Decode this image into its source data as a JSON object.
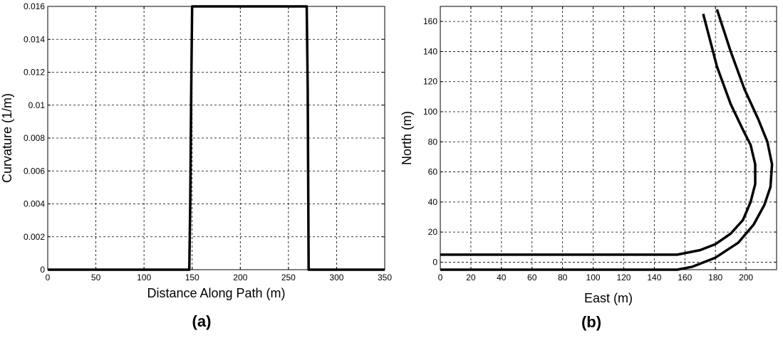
{
  "chart_data": [
    {
      "type": "line",
      "panel_label": "(a)",
      "xlabel": "Distance Along Path (m)",
      "ylabel": "Curvature (1/m)",
      "xlim": [
        0,
        350
      ],
      "ylim": [
        0,
        0.016
      ],
      "xticks": [
        "0",
        "50",
        "100",
        "150",
        "200",
        "250",
        "300",
        "350"
      ],
      "yticks": [
        "0",
        "0.002",
        "0.004",
        "0.006",
        "0.008",
        "0.01",
        "0.012",
        "0.014",
        "0.016"
      ],
      "xtick_values": [
        0,
        50,
        100,
        150,
        200,
        250,
        300,
        350
      ],
      "ytick_values": [
        0,
        0.002,
        0.004,
        0.006,
        0.008,
        0.01,
        0.012,
        0.014,
        0.016
      ],
      "grid": true,
      "series": [
        {
          "x": [
            0,
            147,
            148,
            149,
            150,
            269,
            270,
            271,
            350
          ],
          "y": [
            0,
            0,
            0.004,
            0.011,
            0.016,
            0.016,
            0.011,
            0,
            0
          ]
        }
      ]
    },
    {
      "type": "line",
      "panel_label": "(b)",
      "xlabel": "East (m)",
      "ylabel": "North (m)",
      "xlim": [
        0,
        220
      ],
      "ylim": [
        -5,
        170
      ],
      "xticks": [
        "0",
        "20",
        "40",
        "60",
        "80",
        "100",
        "120",
        "140",
        "160",
        "180",
        "200"
      ],
      "yticks": [
        "0",
        "20",
        "40",
        "60",
        "80",
        "100",
        "120",
        "140",
        "160"
      ],
      "xtick_values": [
        0,
        20,
        40,
        60,
        80,
        100,
        120,
        140,
        160,
        180,
        200
      ],
      "ytick_values": [
        0,
        20,
        40,
        60,
        80,
        100,
        120,
        140,
        160
      ],
      "grid": true,
      "series": [
        {
          "x": [
            0,
            155,
            170,
            180,
            190,
            198,
            203,
            206,
            206,
            203,
            198,
            190,
            181,
            172
          ],
          "y": [
            5,
            5,
            8,
            12,
            19,
            28,
            40,
            52,
            65,
            78,
            88,
            105,
            130,
            165
          ]
        },
        {
          "x": [
            0,
            155,
            165,
            180,
            195,
            205,
            212,
            216,
            217,
            214,
            208,
            199,
            190,
            181
          ],
          "y": [
            -5,
            -5,
            -3,
            3,
            13,
            25,
            38,
            50,
            65,
            80,
            95,
            115,
            140,
            168
          ]
        }
      ]
    }
  ]
}
